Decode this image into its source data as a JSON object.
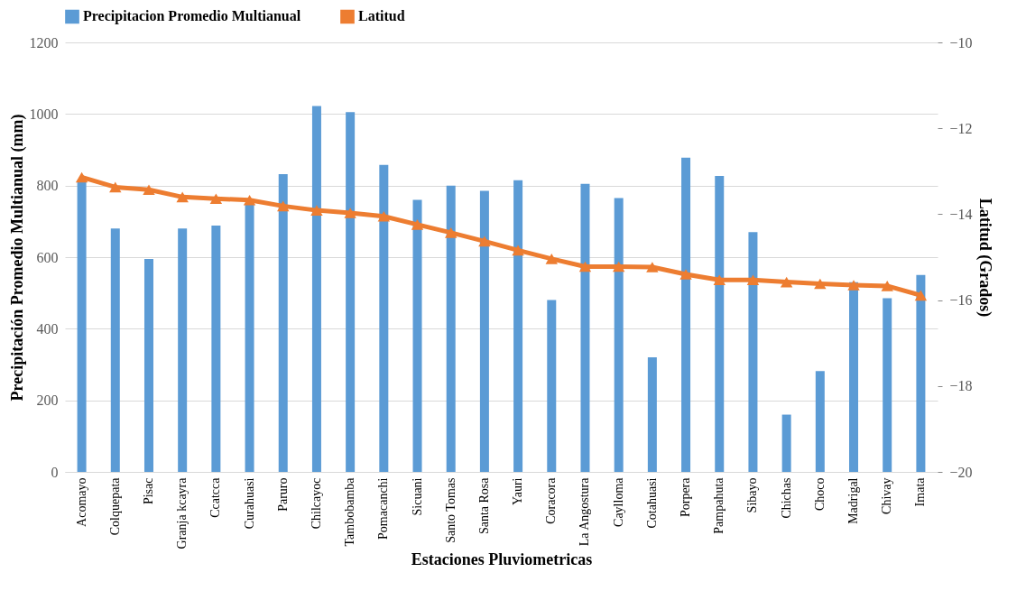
{
  "chart_data": {
    "type": "bar",
    "xlabel": "Estaciones Pluviometricas",
    "ylabel": "Precipitación Promedio Multianual (mm)",
    "y2label": "Latitud (Grados)",
    "categories": [
      "Acomayo",
      "Colquepata",
      "Pisac",
      "Granja kcayra",
      "Ccatcca",
      "Curahuasi",
      "Paruro",
      "Chilcayoc",
      "Tambobamba",
      "Pomacanchi",
      "Sicuani",
      "Santo Tomas",
      "Santa Rosa",
      "Yauri",
      "Coracora",
      "La Angostura",
      "Caylloma",
      "Cotahuasi",
      "Porpera",
      "Pampahuta",
      "Sibayo",
      "Chichas",
      "Choco",
      "Madrigal",
      "Chivay",
      "Imata"
    ],
    "series": [
      {
        "name": "Precipitacion Promedio Multianual",
        "color": "#5b9bd5",
        "values": [
          815,
          680,
          595,
          680,
          688,
          750,
          832,
          1022,
          1005,
          858,
          760,
          800,
          785,
          815,
          480,
          805,
          765,
          320,
          878,
          827,
          670,
          160,
          282,
          530,
          485,
          550
        ]
      },
      {
        "name": "Latitud",
        "type": "line",
        "axis": "y2",
        "color": "#ed7d31",
        "marker": "triangle",
        "line_style": "solid",
        "values": [
          -13.14,
          -13.37,
          -13.43,
          -13.6,
          -13.64,
          -13.67,
          -13.81,
          -13.91,
          -13.97,
          -14.05,
          -14.24,
          -14.43,
          -14.63,
          -14.84,
          -15.04,
          -15.22,
          -15.22,
          -15.23,
          -15.4,
          -15.53,
          -15.53,
          -15.58,
          -15.62,
          -15.65,
          -15.67,
          -15.89
        ]
      }
    ],
    "ylim": [
      0,
      1200
    ],
    "yticks": [
      0,
      200,
      400,
      600,
      800,
      1000,
      1200
    ],
    "y2lim": [
      -20,
      -10
    ],
    "y2ticks": [
      -20,
      -18,
      -16,
      -14,
      -12,
      -10
    ],
    "grid": "y",
    "legend": "top"
  }
}
